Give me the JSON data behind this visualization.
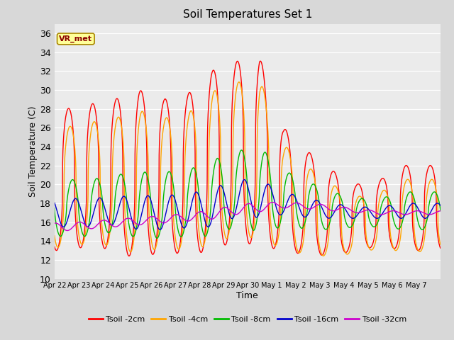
{
  "title": "Soil Temperatures Set 1",
  "xlabel": "Time",
  "ylabel": "Soil Temperature (C)",
  "ylim": [
    10,
    37
  ],
  "fig_facecolor": "#d8d8d8",
  "ax_facecolor": "#ebebeb",
  "grid_color": "#ffffff",
  "annotation_text": "VR_met",
  "series": [
    {
      "label": "Tsoil -2cm",
      "color": "#ff0000"
    },
    {
      "label": "Tsoil -4cm",
      "color": "#ffa500"
    },
    {
      "label": "Tsoil -8cm",
      "color": "#00bb00"
    },
    {
      "label": "Tsoil -16cm",
      "color": "#0000cc"
    },
    {
      "label": "Tsoil -32cm",
      "color": "#cc00cc"
    }
  ],
  "date_labels": [
    "Apr 22",
    "Apr 23",
    "Apr 24",
    "Apr 25",
    "Apr 26",
    "Apr 27",
    "Apr 28",
    "Apr 29",
    "Apr 30",
    "May 1",
    "May 2",
    "May 3",
    "May 4",
    "May 5",
    "May 6",
    "May 7"
  ],
  "num_days": 16,
  "hours_per_day": 24
}
